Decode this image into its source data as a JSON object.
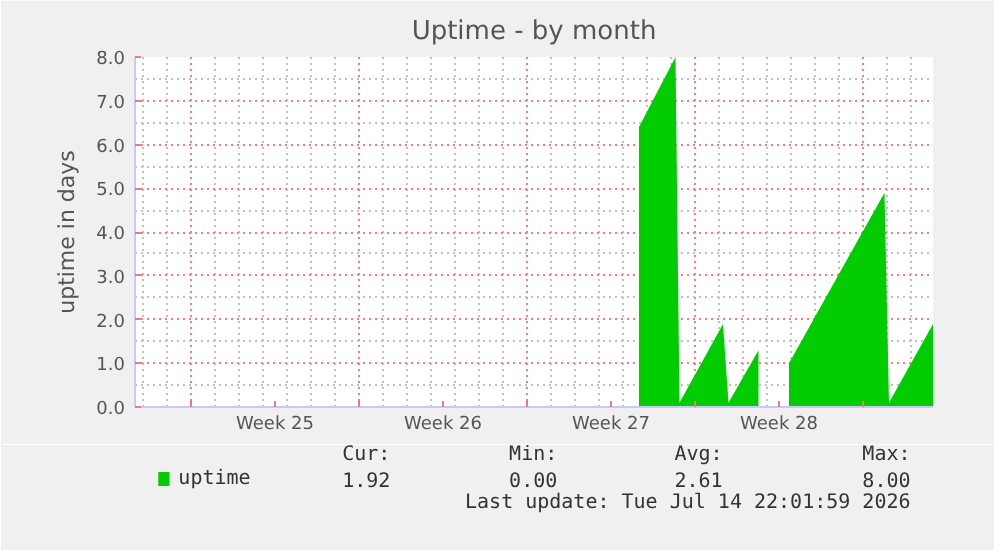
{
  "chart_data": {
    "type": "area",
    "title": "Uptime - by month",
    "ylabel": "uptime in days",
    "x": [
      "2026-07-02T16:00",
      "2026-07-04T04:30",
      "2026-07-04T08:30",
      "2026-07-06T04:00",
      "2026-07-06T09:30",
      "2026-07-07T15:30",
      "2026-07-08T03:30",
      "2026-07-08T22:00",
      "2026-07-12T21:30",
      "2026-07-13T02:00",
      "2026-07-14T22:00"
    ],
    "series": [
      {
        "name": "uptime",
        "color": "#00cc00",
        "values": [
          6.4,
          8.0,
          0.1,
          1.9,
          0.1,
          1.3,
          null,
          1.0,
          4.9,
          0.1,
          1.9
        ]
      }
    ],
    "xlim": [
      "2026-06-11T16:00",
      "2026-07-14T22:00"
    ],
    "ylim": [
      0,
      8
    ],
    "xticks": [
      {
        "value": "2026-06-14",
        "label": null
      },
      {
        "value": "2026-06-17T12:00",
        "label": "Week 25"
      },
      {
        "value": "2026-06-21",
        "label": null
      },
      {
        "value": "2026-06-24T12:00",
        "label": "Week 26"
      },
      {
        "value": "2026-06-28",
        "label": null
      },
      {
        "value": "2026-07-01T12:00",
        "label": "Week 27"
      },
      {
        "value": "2026-07-05",
        "label": null
      },
      {
        "value": "2026-07-08T12:00",
        "label": "Week 28"
      },
      {
        "value": "2026-07-12",
        "label": null
      }
    ],
    "yticks": [
      {
        "value": 0,
        "label": "0.0"
      },
      {
        "value": 1,
        "label": "1.0"
      },
      {
        "value": 2,
        "label": "2.0"
      },
      {
        "value": 3,
        "label": "3.0"
      },
      {
        "value": 4,
        "label": "4.0"
      },
      {
        "value": 5,
        "label": "5.0"
      },
      {
        "value": 6,
        "label": "6.0"
      },
      {
        "value": 7,
        "label": "7.0"
      },
      {
        "value": 8,
        "label": "8.0"
      }
    ],
    "grid": true,
    "legend": "bottom",
    "annotations": [
      "Cur:",
      "Min:",
      "Avg:",
      "Max:",
      "1.92",
      "0.00",
      "2.61",
      "8.00",
      "Last update: Tue Jul 14 22:01:59 2026"
    ]
  }
}
